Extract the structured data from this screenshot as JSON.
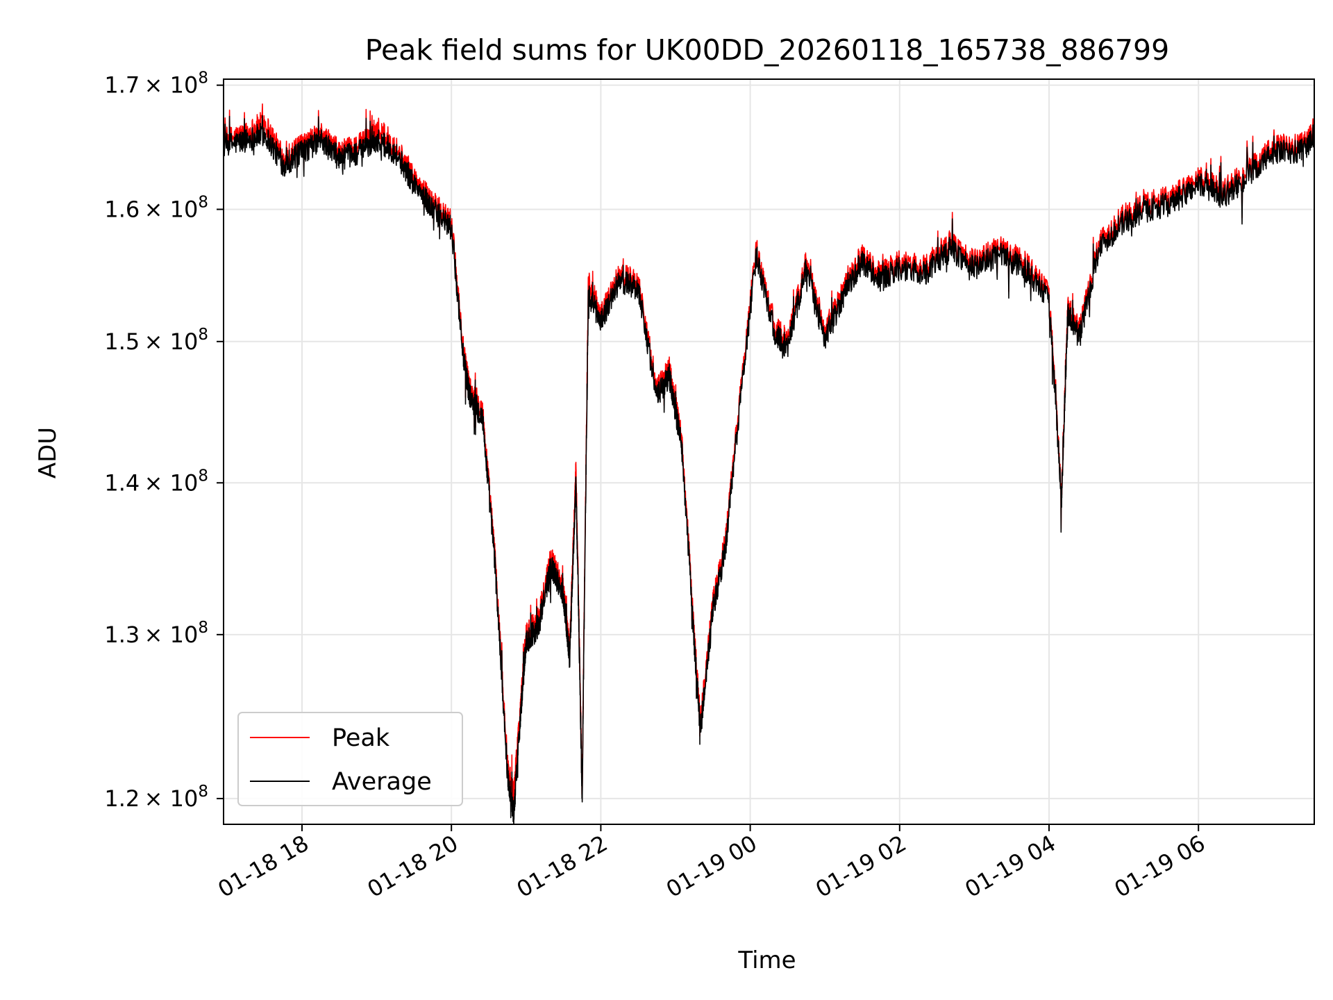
{
  "chart_data": {
    "type": "line",
    "title": "Peak field sums for UK00DD_20260118_165738_886799",
    "xlabel": "Time",
    "ylabel": "ADU",
    "y_scale": "log",
    "ylim": [
      118500000,
      170500000
    ],
    "xlim": [
      "01-18 16:57",
      "01-19 07:33"
    ],
    "grid": true,
    "legend_position": "lower-left",
    "x_ticks": [
      {
        "time": "01-18 18:00",
        "label": "01-18 18"
      },
      {
        "time": "01-18 20:00",
        "label": "01-18 20"
      },
      {
        "time": "01-18 22:00",
        "label": "01-18 22"
      },
      {
        "time": "01-19 00:00",
        "label": "01-19 00"
      },
      {
        "time": "01-19 02:00",
        "label": "01-19 02"
      },
      {
        "time": "01-19 04:00",
        "label": "01-19 04"
      },
      {
        "time": "01-19 06:00",
        "label": "01-19 06"
      }
    ],
    "y_ticks": [
      {
        "value": 120000000,
        "mant": "1.2"
      },
      {
        "value": 130000000,
        "mant": "1.3"
      },
      {
        "value": 140000000,
        "mant": "1.4"
      },
      {
        "value": 150000000,
        "mant": "1.5"
      },
      {
        "value": 160000000,
        "mant": "1.6"
      },
      {
        "value": 170000000,
        "mant": "1.7"
      }
    ],
    "y_tick_suffix": "× 10",
    "y_tick_exponent": "8",
    "colors": {
      "peak": "#ff0000",
      "average": "#000000",
      "grid": "#e6e6e6"
    },
    "series": [
      {
        "name": "Peak",
        "color": "#ff0000",
        "x": [
          "01-18 16:57",
          "01-18 17:15",
          "01-18 17:30",
          "01-18 17:45",
          "01-18 18:00",
          "01-18 18:15",
          "01-18 18:30",
          "01-18 18:45",
          "01-18 19:00",
          "01-18 19:15",
          "01-18 19:30",
          "01-18 19:45",
          "01-18 20:00",
          "01-18 20:10",
          "01-18 20:15",
          "01-18 20:25",
          "01-18 20:35",
          "01-18 20:45",
          "01-18 20:50",
          "01-18 20:55",
          "01-18 21:00",
          "01-18 21:10",
          "01-18 21:20",
          "01-18 21:30",
          "01-18 21:35",
          "01-18 21:40",
          "01-18 21:45",
          "01-18 21:50",
          "01-18 22:00",
          "01-18 22:15",
          "01-18 22:30",
          "01-18 22:45",
          "01-18 22:55",
          "01-18 23:05",
          "01-18 23:15",
          "01-18 23:20",
          "01-18 23:30",
          "01-18 23:40",
          "01-18 23:50",
          "01-19 00:05",
          "01-19 00:20",
          "01-19 00:30",
          "01-19 00:45",
          "01-19 01:00",
          "01-19 01:15",
          "01-19 01:30",
          "01-19 01:45",
          "01-19 02:00",
          "01-19 02:20",
          "01-19 02:40",
          "01-19 03:00",
          "01-19 03:20",
          "01-19 03:40",
          "01-19 04:00",
          "01-19 04:10",
          "01-19 04:15",
          "01-19 04:25",
          "01-19 04:40",
          "01-19 05:00",
          "01-19 05:20",
          "01-19 05:40",
          "01-19 06:00",
          "01-19 06:20",
          "01-19 06:40",
          "01-19 07:00",
          "01-19 07:20",
          "01-19 07:33"
        ],
        "values": [
          165500000,
          166000000,
          167000000,
          164000000,
          165000000,
          166000000,
          164500000,
          165000000,
          166500000,
          165000000,
          162500000,
          160500000,
          159000000,
          149000000,
          146500000,
          145000000,
          135000000,
          122000000,
          120200000,
          125000000,
          130000000,
          131000000,
          135000000,
          133000000,
          129000000,
          141000000,
          120000000,
          154500000,
          152000000,
          155000000,
          154500000,
          146500000,
          148000000,
          143000000,
          130000000,
          124500000,
          132000000,
          136000000,
          144500000,
          157000000,
          151000000,
          150000000,
          156000000,
          150500000,
          154000000,
          156500000,
          155000000,
          156000000,
          155500000,
          157500000,
          156000000,
          157000000,
          156000000,
          153500000,
          139000000,
          152500000,
          151000000,
          157500000,
          159500000,
          160500000,
          161000000,
          162500000,
          161500000,
          163000000,
          165000000,
          165000000,
          166000000
        ]
      },
      {
        "name": "Average",
        "color": "#000000",
        "x": [
          "01-18 16:57",
          "01-18 17:15",
          "01-18 17:30",
          "01-18 17:45",
          "01-18 18:00",
          "01-18 18:15",
          "01-18 18:30",
          "01-18 18:45",
          "01-18 19:00",
          "01-18 19:15",
          "01-18 19:30",
          "01-18 19:45",
          "01-18 20:00",
          "01-18 20:10",
          "01-18 20:15",
          "01-18 20:25",
          "01-18 20:35",
          "01-18 20:45",
          "01-18 20:50",
          "01-18 20:55",
          "01-18 21:00",
          "01-18 21:10",
          "01-18 21:20",
          "01-18 21:30",
          "01-18 21:35",
          "01-18 21:40",
          "01-18 21:45",
          "01-18 21:50",
          "01-18 22:00",
          "01-18 22:15",
          "01-18 22:30",
          "01-18 22:45",
          "01-18 22:55",
          "01-18 23:05",
          "01-18 23:15",
          "01-18 23:20",
          "01-18 23:30",
          "01-18 23:40",
          "01-18 23:50",
          "01-19 00:05",
          "01-19 00:20",
          "01-19 00:30",
          "01-19 00:45",
          "01-19 01:00",
          "01-19 01:15",
          "01-19 01:30",
          "01-19 01:45",
          "01-19 02:00",
          "01-19 02:20",
          "01-19 02:40",
          "01-19 03:00",
          "01-19 03:20",
          "01-19 03:40",
          "01-19 04:00",
          "01-19 04:10",
          "01-19 04:15",
          "01-19 04:25",
          "01-19 04:40",
          "01-19 05:00",
          "01-19 05:20",
          "01-19 05:40",
          "01-19 06:00",
          "01-19 06:20",
          "01-19 06:40",
          "01-19 07:00",
          "01-19 07:20",
          "01-19 07:33"
        ],
        "values": [
          165000000,
          165500000,
          166000000,
          163500000,
          164500000,
          165500000,
          164000000,
          164500000,
          165500000,
          164500000,
          162000000,
          160000000,
          158500000,
          148500000,
          146000000,
          144500000,
          134500000,
          121500000,
          119000000,
          124500000,
          129500000,
          130500000,
          134500000,
          132500000,
          128500000,
          140000000,
          119800000,
          153500000,
          151500000,
          154500000,
          154000000,
          146000000,
          147500000,
          142500000,
          129500000,
          124000000,
          131500000,
          135500000,
          144000000,
          156500000,
          150500000,
          149500000,
          155500000,
          150000000,
          153500000,
          156000000,
          154500000,
          155500000,
          155000000,
          157000000,
          155500000,
          156500000,
          155500000,
          153000000,
          138800000,
          152000000,
          150500000,
          157000000,
          159000000,
          160000000,
          160500000,
          162000000,
          161000000,
          162500000,
          164500000,
          164500000,
          165500000
        ]
      }
    ]
  }
}
